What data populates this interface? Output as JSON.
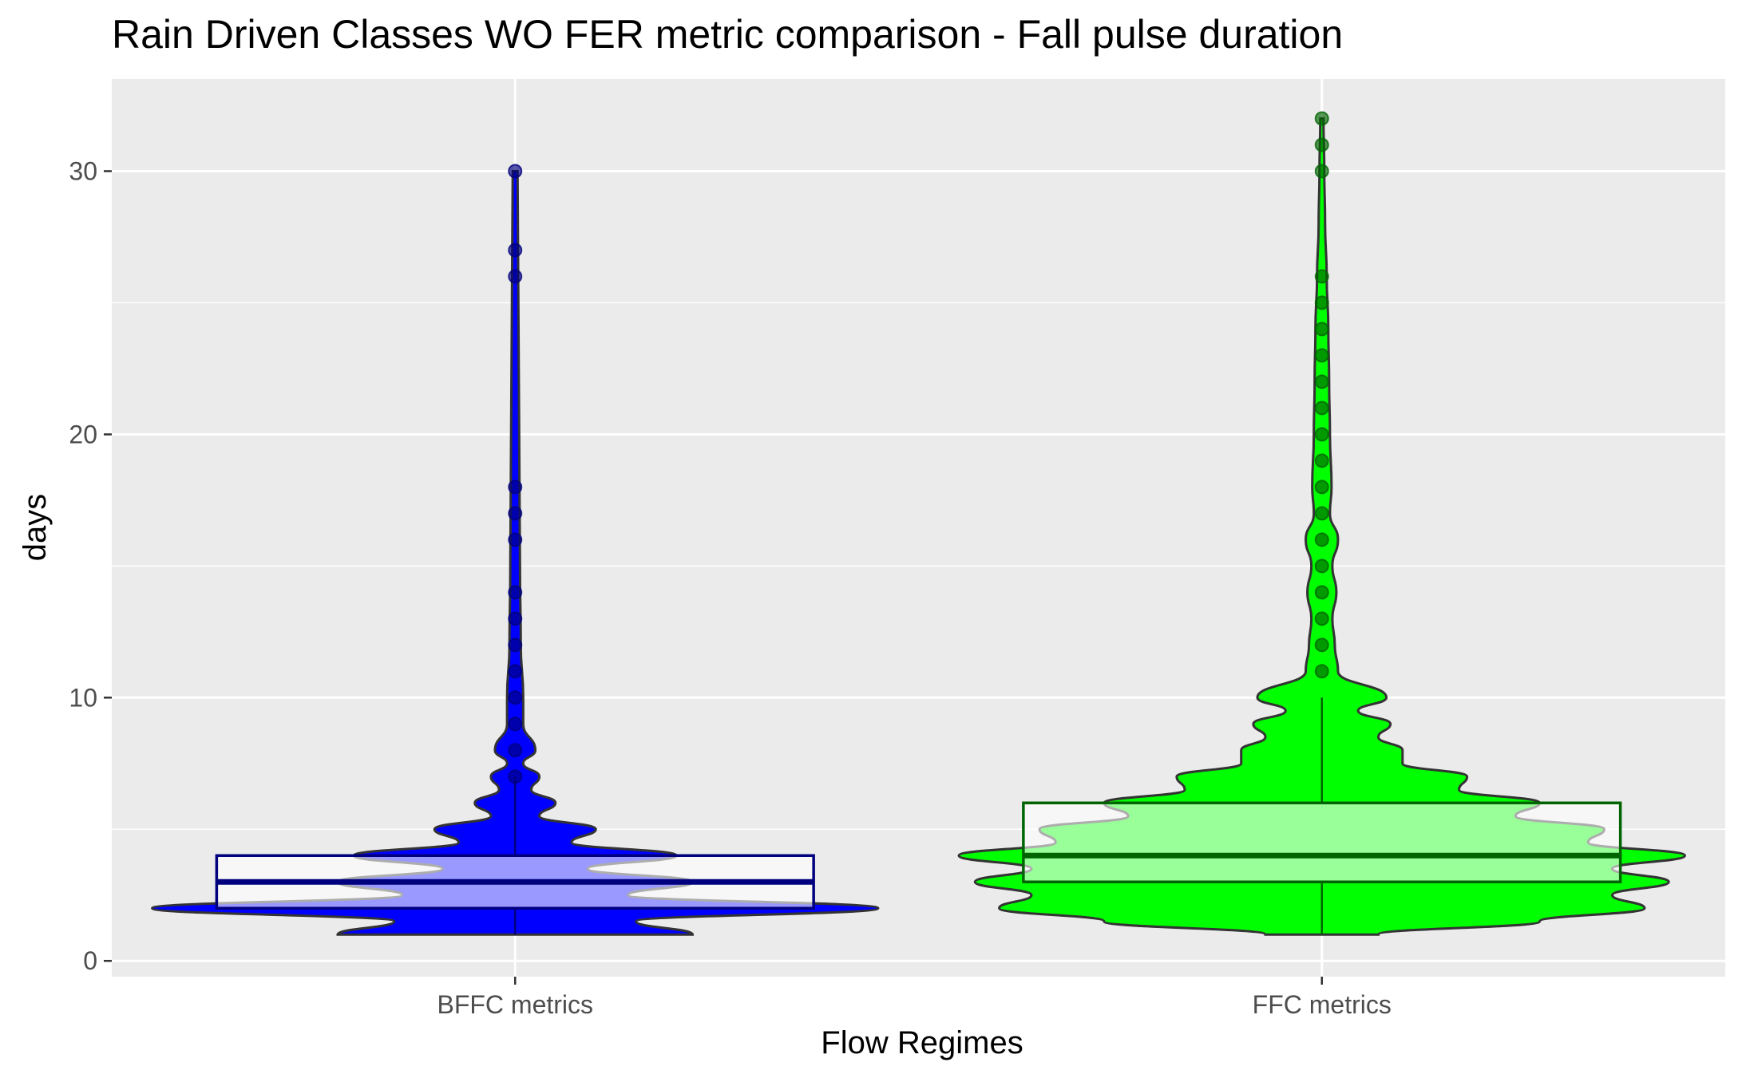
{
  "chart_data": {
    "type": "violin",
    "title": "Rain Driven Classes WO FER metric comparison  - Fall pulse duration",
    "xlabel": "Flow Regimes",
    "ylabel": "days",
    "ylim": [
      -0.6,
      33.5
    ],
    "yticks": [
      0,
      10,
      20,
      30
    ],
    "grid": true,
    "legend": "none",
    "categories": [
      "BFFC metrics",
      "FFC metrics"
    ],
    "series": [
      {
        "category": "BFFC metrics",
        "fill": "#0000ff",
        "box_fill": "#ffffff",
        "box_stroke": "#00007f",
        "box": {
          "min": 1,
          "q1": 2,
          "median": 3,
          "q3": 4,
          "max": 7
        },
        "points": [
          7,
          8,
          9,
          10,
          11,
          12,
          13,
          14,
          16,
          17,
          18,
          26,
          27,
          30
        ],
        "violin": {
          "y": [
            1,
            1.5,
            2,
            2.5,
            3,
            3.5,
            4,
            4.5,
            5,
            5.5,
            6,
            6.5,
            7,
            7.5,
            8,
            9,
            10,
            12,
            15,
            20,
            25,
            30
          ],
          "half_width": [
            0.22,
            0.15,
            0.45,
            0.14,
            0.22,
            0.09,
            0.2,
            0.07,
            0.1,
            0.03,
            0.05,
            0.02,
            0.03,
            0.01,
            0.025,
            0.01,
            0.01,
            0.007,
            0.006,
            0.005,
            0.004,
            0.003
          ]
        }
      },
      {
        "category": "FFC metrics",
        "fill": "#00ff00",
        "box_fill": "#ffffff",
        "box_stroke": "#006400",
        "box": {
          "min": 1,
          "q1": 3,
          "median": 4,
          "q3": 6,
          "max": 10
        },
        "points": [
          11,
          12,
          13,
          14,
          15,
          16,
          17,
          18,
          19,
          20,
          21,
          22,
          23,
          24,
          25,
          26,
          30,
          31,
          32
        ],
        "violin": {
          "y": [
            1,
            1.5,
            2,
            2.5,
            3,
            3.5,
            4,
            4.5,
            5,
            5.5,
            6,
            6.5,
            7,
            7.5,
            8,
            8.5,
            9,
            9.5,
            10,
            11,
            12,
            13,
            14,
            15,
            16,
            17,
            18,
            20,
            22,
            24,
            26,
            28,
            30,
            32
          ],
          "half_width": [
            0.07,
            0.27,
            0.4,
            0.36,
            0.43,
            0.36,
            0.45,
            0.33,
            0.35,
            0.24,
            0.27,
            0.17,
            0.18,
            0.1,
            0.1,
            0.07,
            0.085,
            0.045,
            0.08,
            0.02,
            0.016,
            0.013,
            0.018,
            0.013,
            0.02,
            0.01,
            0.012,
            0.01,
            0.009,
            0.008,
            0.006,
            0.004,
            0.003,
            0.002
          ]
        }
      }
    ]
  }
}
